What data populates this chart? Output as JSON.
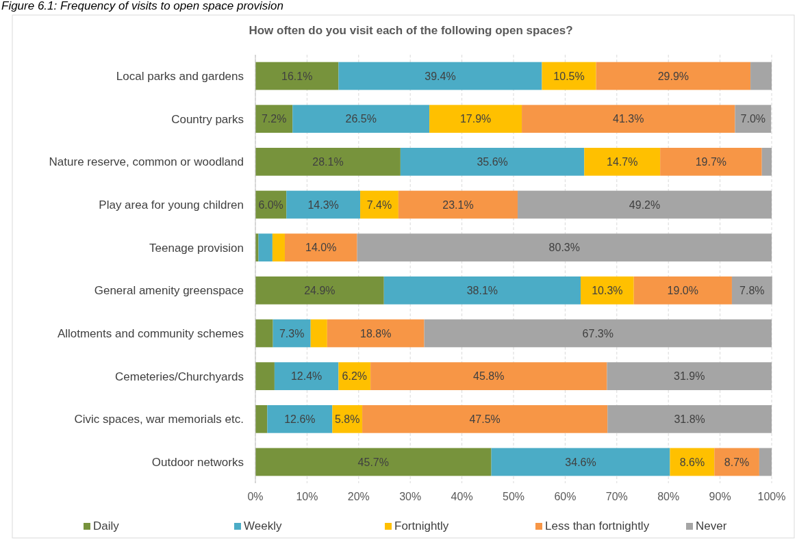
{
  "chart_data": {
    "type": "bar",
    "orientation": "horizontal",
    "stacked": true,
    "title": "How often do you visit each of the following open spaces?",
    "annotations": [
      "Figure 6.1: Frequency of visits to open space provision"
    ],
    "categories": [
      "Local parks and gardens",
      "Country parks",
      "Nature reserve, common or woodland",
      "Play area for young children",
      "Teenage provision",
      "General amenity greenspace",
      "Allotments and community schemes",
      "Cemeteries/Churchyards",
      "Civic spaces, war memorials etc.",
      "Outdoor networks"
    ],
    "series": [
      {
        "name": "Daily",
        "color": "#77933c",
        "values": [
          16.1,
          7.2,
          28.1,
          6.0,
          0.6,
          24.9,
          3.4,
          3.7,
          2.3,
          45.7
        ],
        "value_labels": [
          "16.1%",
          "7.2%",
          "28.1%",
          "6.0%",
          null,
          "24.9%",
          null,
          null,
          null,
          "45.7%"
        ]
      },
      {
        "name": "Weekly",
        "color": "#4bacc6",
        "values": [
          39.4,
          26.5,
          35.6,
          14.3,
          2.7,
          38.1,
          7.3,
          12.4,
          12.6,
          34.6
        ],
        "value_labels": [
          "39.4%",
          "26.5%",
          "35.6%",
          "14.3%",
          null,
          "38.1%",
          "7.3%",
          "12.4%",
          "12.6%",
          "34.6%"
        ]
      },
      {
        "name": "Fortnightly",
        "color": "#ffc000",
        "values": [
          10.5,
          17.9,
          14.7,
          7.4,
          2.4,
          10.3,
          3.2,
          6.2,
          5.8,
          8.6
        ],
        "value_labels": [
          "10.5%",
          "17.9%",
          "14.7%",
          "7.4%",
          null,
          "10.3%",
          null,
          "6.2%",
          "5.8%",
          "8.6%"
        ]
      },
      {
        "name": "Less than fortnightly",
        "color": "#f79646",
        "values": [
          29.9,
          41.3,
          19.7,
          23.1,
          14.0,
          19.0,
          18.8,
          45.8,
          47.5,
          8.7
        ],
        "value_labels": [
          "29.9%",
          "41.3%",
          "19.7%",
          "23.1%",
          "14.0%",
          "19.0%",
          "18.8%",
          "45.8%",
          "47.5%",
          "8.7%"
        ]
      },
      {
        "name": "Never",
        "color": "#a5a5a5",
        "values": [
          4.1,
          7.0,
          1.9,
          49.2,
          80.3,
          7.8,
          67.3,
          31.9,
          31.8,
          2.4
        ],
        "value_labels": [
          null,
          "7.0%",
          null,
          "49.2%",
          "80.3%",
          "7.8%",
          "67.3%",
          "31.9%",
          "31.8%",
          null
        ]
      }
    ],
    "xlim": [
      0,
      100
    ],
    "xticks": [
      {
        "value": 0,
        "label": "0%"
      },
      {
        "value": 10,
        "label": "10%"
      },
      {
        "value": 20,
        "label": "20%"
      },
      {
        "value": 30,
        "label": "30%"
      },
      {
        "value": 40,
        "label": "40%"
      },
      {
        "value": 50,
        "label": "50%"
      },
      {
        "value": 60,
        "label": "60%"
      },
      {
        "value": 70,
        "label": "70%"
      },
      {
        "value": 80,
        "label": "80%"
      },
      {
        "value": 90,
        "label": "90%"
      },
      {
        "value": 100,
        "label": "100%"
      }
    ],
    "grid": "x",
    "legend": "bottom"
  }
}
